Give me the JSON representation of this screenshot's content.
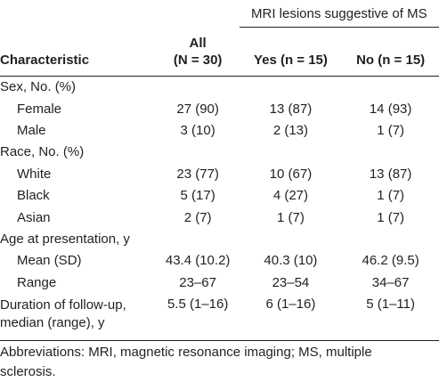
{
  "table": {
    "group_header": "MRI lesions suggestive of MS",
    "columns": {
      "characteristic": "Characteristic",
      "all_line1": "All",
      "all_line2": "(N = 30)",
      "yes": "Yes (n = 15)",
      "no": "No (n = 15)"
    },
    "rows": [
      {
        "label": "Sex, No. (%)",
        "all": "",
        "yes": "",
        "no": ""
      },
      {
        "label": "Female",
        "all": "27 (90)",
        "yes": "13 (87)",
        "no": "14 (93)"
      },
      {
        "label": "Male",
        "all": "3 (10)",
        "yes": "2 (13)",
        "no": "1 (7)"
      },
      {
        "label": "Race, No. (%)",
        "all": "",
        "yes": "",
        "no": ""
      },
      {
        "label": "White",
        "all": "23 (77)",
        "yes": "10 (67)",
        "no": "13 (87)"
      },
      {
        "label": "Black",
        "all": "5 (17)",
        "yes": "4 (27)",
        "no": "1 (7)"
      },
      {
        "label": "Asian",
        "all": "2 (7)",
        "yes": "1 (7)",
        "no": "1 (7)"
      },
      {
        "label": "Age at presentation, y",
        "all": "",
        "yes": "",
        "no": ""
      },
      {
        "label": "Mean (SD)",
        "all": "43.4 (10.2)",
        "yes": "40.3 (10)",
        "no": "46.2 (9.5)"
      },
      {
        "label": "Range",
        "all": "23–67",
        "yes": "23–54",
        "no": "34–67"
      },
      {
        "label_line1": "Duration of follow-up,",
        "label_line2": "median (range), y",
        "all": "5.5 (1–16)",
        "yes": "6 (1–16)",
        "no": "5 (1–11)"
      }
    ]
  },
  "footnote": {
    "line1": "Abbreviations: MRI, magnetic resonance imaging; MS, multiple",
    "line2": "sclerosis."
  }
}
